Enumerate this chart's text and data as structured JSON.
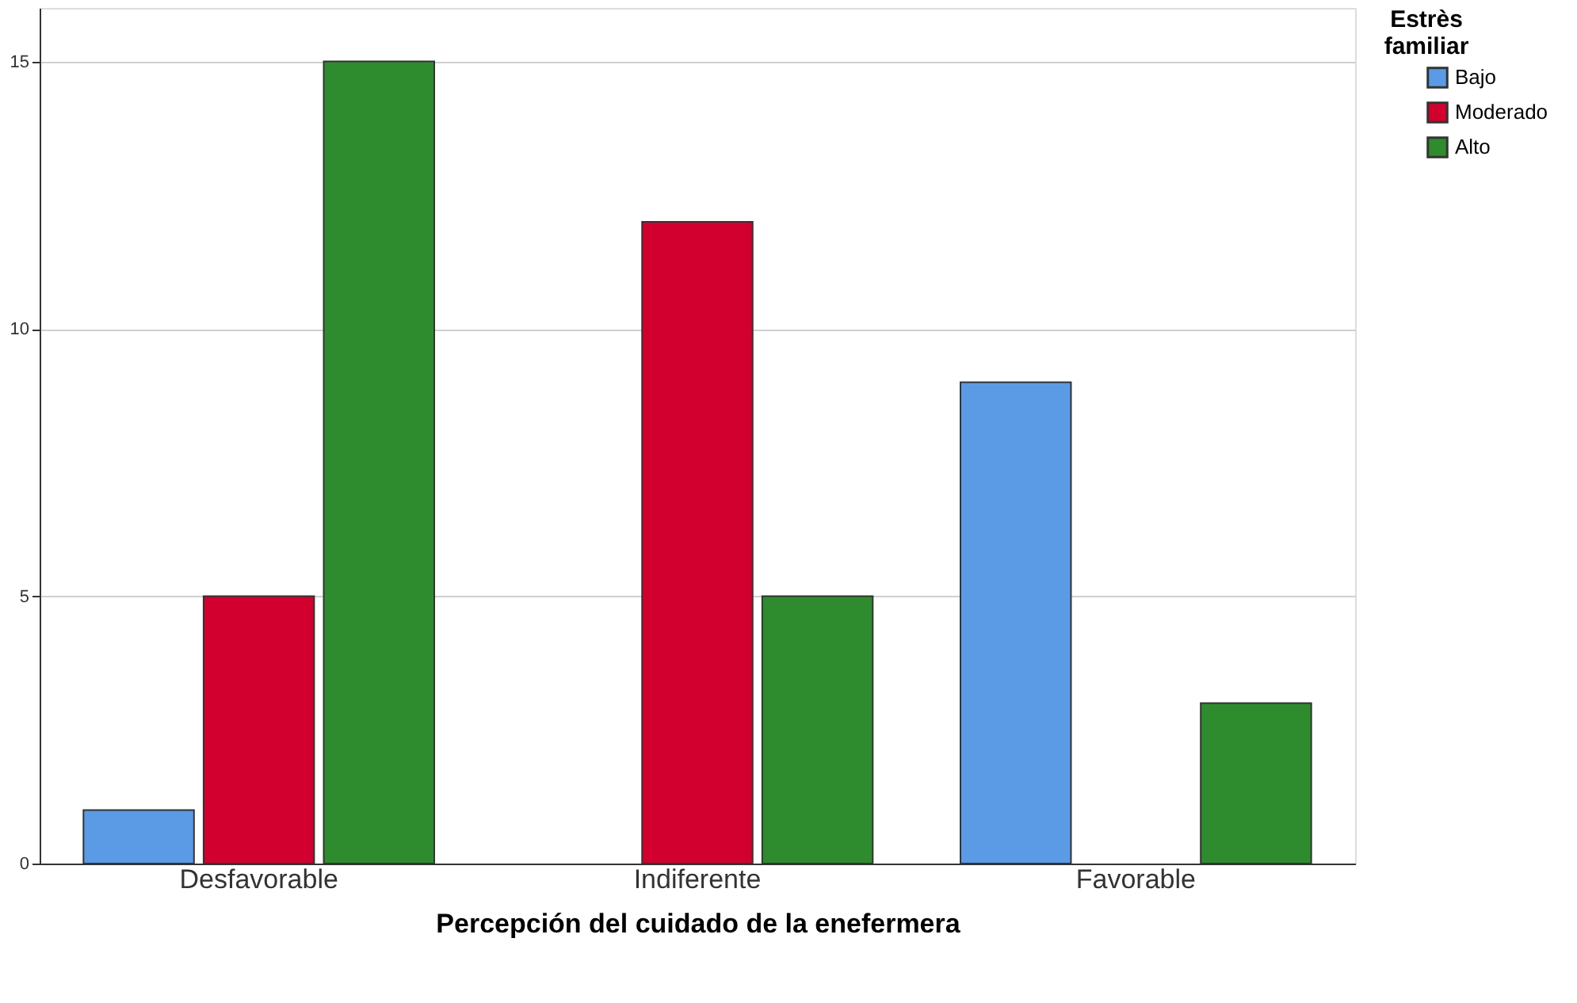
{
  "chart_data": {
    "type": "bar",
    "xlabel": "Percepción del cuidado de la enefermera",
    "legend_title": "Estrès familiar",
    "categories": [
      "Desfavorable",
      "Indiferente",
      "Favorable"
    ],
    "series": [
      {
        "name": "Bajo",
        "color": "#5b9be6",
        "values": [
          1,
          null,
          9
        ]
      },
      {
        "name": "Moderado",
        "color": "#d2002e",
        "values": [
          5,
          12,
          null
        ]
      },
      {
        "name": "Alto",
        "color": "#2e8b2e",
        "values": [
          15,
          5,
          3
        ]
      }
    ],
    "ylim": [
      0,
      16
    ],
    "yticks": [
      0,
      5,
      10,
      15
    ],
    "grid": "y",
    "legend": "top right"
  }
}
